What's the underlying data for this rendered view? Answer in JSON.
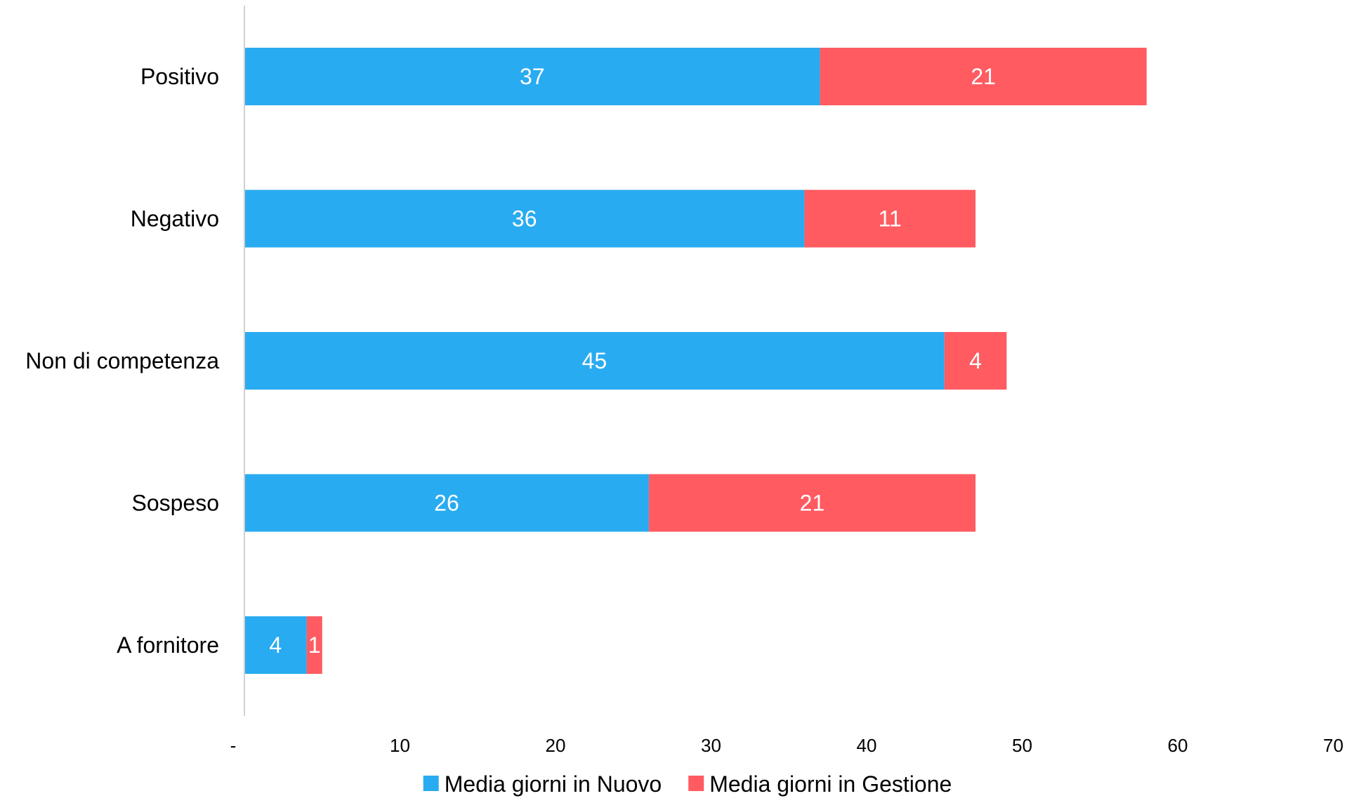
{
  "chart_data": {
    "type": "bar",
    "orientation": "horizontal",
    "stacked": true,
    "categories": [
      "Positivo",
      "Negativo",
      "Non di competenza",
      "Sospeso",
      "A fornitore"
    ],
    "series": [
      {
        "name": "Media giorni in Nuovo",
        "color": "#29ABF1",
        "values": [
          37,
          36,
          45,
          26,
          4
        ],
        "labels": [
          "37",
          "36",
          "45",
          "26",
          "4"
        ]
      },
      {
        "name": "Media giorni in Gestione",
        "color": "#FF5B61",
        "values": [
          21,
          11,
          4,
          21,
          1
        ],
        "labels": [
          "21",
          "11",
          "4",
          "21",
          "1"
        ]
      }
    ],
    "x_ticks": [
      0,
      10,
      20,
      30,
      40,
      50,
      60,
      70
    ],
    "x_tick_labels": [
      "-",
      "10",
      "20",
      "30",
      "40",
      "50",
      "60",
      "70"
    ],
    "xlim": [
      0,
      70
    ],
    "grid": false,
    "legend": "bottom",
    "title": "",
    "xlabel": "",
    "ylabel": ""
  }
}
